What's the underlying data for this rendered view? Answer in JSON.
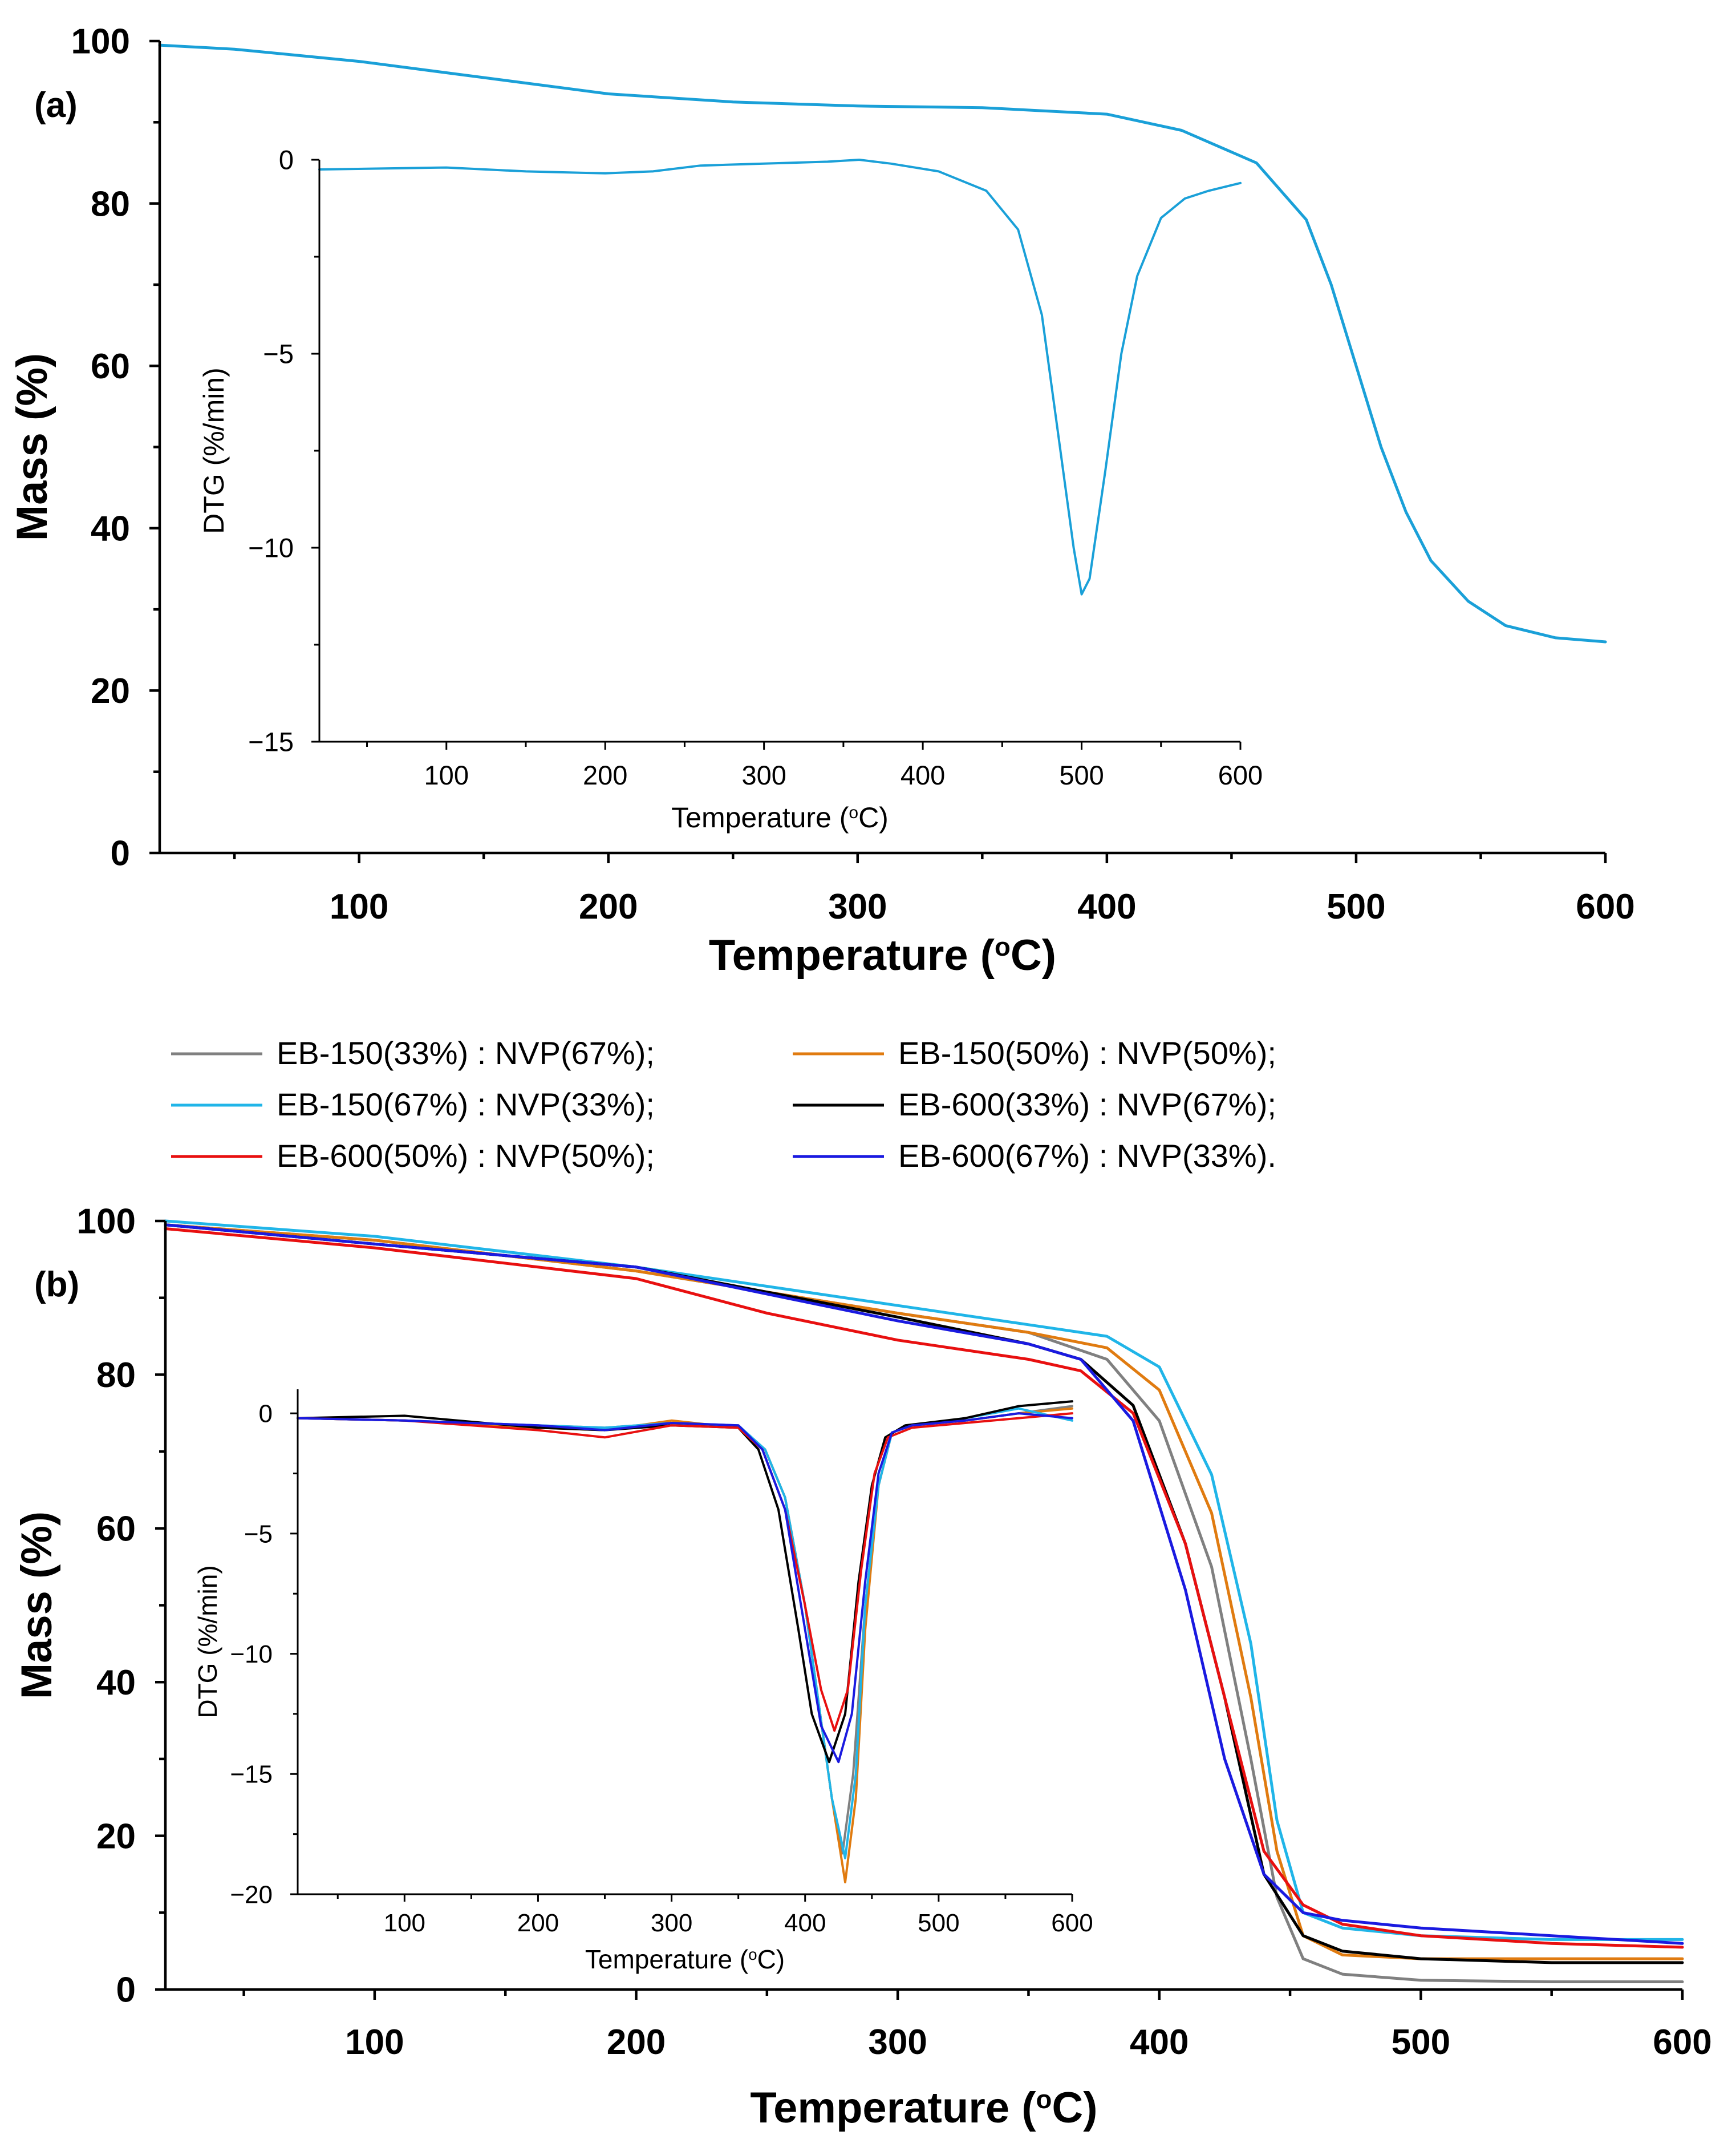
{
  "chart_data": [
    {
      "id": "a",
      "panel_label": "(a)",
      "type": "line",
      "title": "",
      "xlabel": "Temperature",
      "xlabel_unit": "(°C)",
      "ylabel": "Mass (%)",
      "xlim": [
        20,
        600
      ],
      "ylim": [
        0,
        100
      ],
      "xticks": [
        100,
        200,
        300,
        400,
        500,
        600
      ],
      "yticks": [
        0,
        20,
        40,
        60,
        80,
        100
      ],
      "series": [
        {
          "name": "Mass",
          "color": "#1aa0d8",
          "x": [
            20,
            50,
            100,
            150,
            200,
            250,
            300,
            350,
            400,
            430,
            460,
            480,
            490,
            500,
            510,
            520,
            530,
            545,
            560,
            580,
            600
          ],
          "y": [
            99.5,
            99,
            97.5,
            95.5,
            93.5,
            92.5,
            92,
            91.8,
            91,
            89,
            85,
            78,
            70,
            60,
            50,
            42,
            36,
            31,
            28,
            26.5,
            26
          ]
        }
      ],
      "inset": {
        "type": "line",
        "xlabel": "Temperature",
        "xlabel_unit": "(°C)",
        "ylabel": "DTG (%/min)",
        "xlim": [
          20,
          600
        ],
        "ylim": [
          -15,
          0
        ],
        "xticks": [
          100,
          200,
          300,
          400,
          500,
          600
        ],
        "yticks": [
          0,
          -5,
          -10,
          -15
        ],
        "series": [
          {
            "name": "DTG",
            "color": "#1aa0d8",
            "x": [
              20,
              100,
              150,
              200,
              230,
              260,
              300,
              340,
              360,
              380,
              410,
              440,
              460,
              475,
              485,
              495,
              500,
              505,
              515,
              525,
              535,
              550,
              565,
              580,
              600
            ],
            "y": [
              -0.25,
              -0.2,
              -0.3,
              -0.35,
              -0.3,
              -0.15,
              -0.1,
              -0.05,
              0,
              -0.1,
              -0.3,
              -0.8,
              -1.8,
              -4,
              -7,
              -10,
              -11.2,
              -10.8,
              -8,
              -5,
              -3,
              -1.5,
              -1,
              -0.8,
              -0.6
            ]
          }
        ]
      }
    },
    {
      "id": "b",
      "panel_label": "(b)",
      "type": "line",
      "title": "",
      "xlabel": "Temperature",
      "xlabel_unit": "(°C)",
      "ylabel": "Mass (%)",
      "xlim": [
        20,
        600
      ],
      "ylim": [
        0,
        100
      ],
      "xticks": [
        100,
        200,
        300,
        400,
        500,
        600
      ],
      "yticks": [
        0,
        20,
        40,
        60,
        80,
        100
      ],
      "legend": [
        "EB-150(33%) : NVP(67%);",
        "EB-150(50%) : NVP(50%);",
        "EB-150(67%) : NVP(33%);",
        "EB-600(33%) : NVP(67%);",
        "EB-600(50%) : NVP(50%);",
        "EB-600(67%) : NVP(33%)."
      ],
      "series": [
        {
          "name": "EB-150(33%) : NVP(67%);",
          "color": "#808080",
          "x": [
            20,
            100,
            200,
            300,
            350,
            380,
            400,
            420,
            435,
            445,
            455,
            470,
            500,
            550,
            600
          ],
          "y": [
            99.5,
            97.5,
            93.5,
            88,
            85.5,
            82,
            74,
            55,
            30,
            12,
            4,
            2,
            1.2,
            1,
            1
          ]
        },
        {
          "name": "EB-150(50%) : NVP(50%);",
          "color": "#e07b10",
          "x": [
            20,
            100,
            200,
            300,
            350,
            380,
            400,
            420,
            435,
            445,
            455,
            470,
            500,
            550,
            600
          ],
          "y": [
            99.5,
            97.5,
            93.5,
            88,
            85.5,
            83.5,
            78,
            62,
            38,
            18,
            7,
            4.5,
            4,
            4,
            4
          ]
        },
        {
          "name": "EB-150(67%) : NVP(33%);",
          "color": "#20b5e8",
          "x": [
            20,
            100,
            200,
            300,
            350,
            380,
            400,
            420,
            435,
            445,
            455,
            470,
            500,
            550,
            600
          ],
          "y": [
            100,
            98,
            94,
            89,
            86.5,
            85,
            81,
            67,
            45,
            22,
            10,
            8,
            7,
            6.5,
            6.5
          ]
        },
        {
          "name": "EB-600(33%) : NVP(67%);",
          "color": "#000000",
          "x": [
            20,
            100,
            200,
            300,
            350,
            370,
            390,
            410,
            425,
            440,
            455,
            470,
            500,
            550,
            600
          ],
          "y": [
            99.5,
            97,
            94,
            87.5,
            84,
            82,
            76,
            58,
            38,
            15,
            7,
            5,
            4,
            3.5,
            3.5
          ]
        },
        {
          "name": "EB-600(50%) : NVP(50%);",
          "color": "#e81010",
          "x": [
            20,
            100,
            200,
            250,
            300,
            350,
            370,
            390,
            410,
            425,
            440,
            455,
            470,
            500,
            550,
            600
          ],
          "y": [
            99,
            96.5,
            92.5,
            88,
            84.5,
            82,
            80.5,
            75,
            58,
            38,
            18,
            11,
            8.5,
            7,
            6,
            5.5
          ]
        },
        {
          "name": "EB-600(67%) : NVP(33%).",
          "color": "#1a1ae0",
          "x": [
            20,
            100,
            200,
            300,
            350,
            370,
            390,
            410,
            425,
            440,
            455,
            470,
            500,
            550,
            600
          ],
          "y": [
            99.5,
            97,
            94,
            87,
            84,
            82,
            74,
            52,
            30,
            15,
            10,
            9,
            8,
            7,
            6
          ]
        }
      ],
      "inset": {
        "type": "line",
        "xlabel": "Temperature",
        "xlabel_unit": "(°C)",
        "ylabel": "DTG (%/min)",
        "xlim": [
          20,
          600
        ],
        "ylim": [
          -20,
          1
        ],
        "xticks": [
          100,
          200,
          300,
          400,
          500,
          600
        ],
        "yticks": [
          0,
          -5,
          -10,
          -15,
          -20
        ],
        "series": [
          {
            "name": "EB-150(33%) : NVP(67%);",
            "color": "#808080",
            "x": [
              20,
              100,
              200,
              250,
              300,
              350,
              370,
              385,
              400,
              410,
              420,
              428,
              436,
              445,
              455,
              465,
              480,
              520,
              560,
              600
            ],
            "y": [
              -0.2,
              -0.3,
              -0.5,
              -0.6,
              -0.4,
              -0.6,
              -1.5,
              -3.5,
              -8,
              -12,
              -16,
              -18.3,
              -15,
              -8,
              -3,
              -0.8,
              -0.5,
              -0.3,
              0,
              0.3
            ]
          },
          {
            "name": "EB-150(50%) : NVP(50%);",
            "color": "#e07b10",
            "x": [
              20,
              100,
              200,
              250,
              300,
              350,
              370,
              385,
              400,
              410,
              420,
              430,
              438,
              445,
              455,
              465,
              480,
              520,
              560,
              600
            ],
            "y": [
              -0.2,
              -0.3,
              -0.6,
              -0.7,
              -0.3,
              -0.6,
              -1.5,
              -3.5,
              -8,
              -12,
              -16,
              -19.5,
              -16,
              -9,
              -3,
              -0.8,
              -0.5,
              -0.3,
              0,
              0.2
            ]
          },
          {
            "name": "EB-150(67%) : NVP(33%);",
            "color": "#20b5e8",
            "x": [
              20,
              100,
              200,
              250,
              300,
              350,
              370,
              385,
              400,
              410,
              420,
              430,
              438,
              445,
              455,
              465,
              480,
              520,
              560,
              600
            ],
            "y": [
              -0.2,
              -0.3,
              -0.5,
              -0.6,
              -0.4,
              -0.5,
              -1.5,
              -3.5,
              -8,
              -12,
              -16,
              -18.5,
              -15,
              -8,
              -3,
              -0.8,
              -0.5,
              -0.2,
              0.2,
              -0.3
            ]
          },
          {
            "name": "EB-600(33%) : NVP(67%);",
            "color": "#000000",
            "x": [
              20,
              100,
              200,
              250,
              300,
              350,
              365,
              380,
              395,
              405,
              418,
              430,
              440,
              450,
              460,
              475,
              520,
              560,
              600
            ],
            "y": [
              -0.2,
              -0.1,
              -0.6,
              -0.7,
              -0.5,
              -0.6,
              -1.5,
              -4,
              -9,
              -12.5,
              -14.5,
              -12.5,
              -7,
              -3,
              -1,
              -0.5,
              -0.2,
              0.3,
              0.5
            ]
          },
          {
            "name": "EB-600(50%) : NVP(50%);",
            "color": "#e81010",
            "x": [
              20,
              100,
              200,
              250,
              300,
              350,
              368,
              385,
              400,
              412,
              422,
              432,
              442,
              452,
              462,
              480,
              520,
              560,
              600
            ],
            "y": [
              -0.2,
              -0.3,
              -0.7,
              -1.0,
              -0.5,
              -0.6,
              -1.5,
              -4,
              -8,
              -11.5,
              -13.2,
              -11.5,
              -6.5,
              -2.5,
              -1,
              -0.6,
              -0.4,
              -0.2,
              0
            ]
          },
          {
            "name": "EB-600(67%) : NVP(33%).",
            "color": "#1a1ae0",
            "x": [
              20,
              100,
              200,
              250,
              300,
              350,
              368,
              385,
              400,
              412,
              425,
              435,
              445,
              455,
              465,
              480,
              520,
              560,
              600
            ],
            "y": [
              -0.2,
              -0.3,
              -0.5,
              -0.7,
              -0.4,
              -0.5,
              -1.5,
              -4,
              -9,
              -13,
              -14.5,
              -12.5,
              -7,
              -2.5,
              -0.8,
              -0.5,
              -0.3,
              0,
              -0.2
            ]
          }
        ]
      }
    }
  ]
}
